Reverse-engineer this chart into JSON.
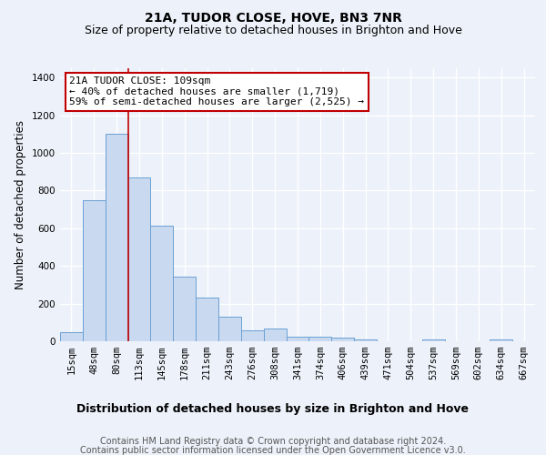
{
  "title": "21A, TUDOR CLOSE, HOVE, BN3 7NR",
  "subtitle": "Size of property relative to detached houses in Brighton and Hove",
  "xlabel": "Distribution of detached houses by size in Brighton and Hove",
  "ylabel": "Number of detached properties",
  "bar_color": "#c9d9f0",
  "bar_edge_color": "#6aa0d4",
  "categories": [
    "15sqm",
    "48sqm",
    "80sqm",
    "113sqm",
    "145sqm",
    "178sqm",
    "211sqm",
    "243sqm",
    "276sqm",
    "308sqm",
    "341sqm",
    "374sqm",
    "406sqm",
    "439sqm",
    "471sqm",
    "504sqm",
    "537sqm",
    "569sqm",
    "602sqm",
    "634sqm",
    "667sqm"
  ],
  "values": [
    48,
    750,
    1100,
    870,
    615,
    345,
    230,
    130,
    60,
    67,
    25,
    25,
    18,
    12,
    0,
    0,
    10,
    0,
    0,
    10,
    0
  ],
  "ylim": [
    0,
    1450
  ],
  "yticks": [
    0,
    200,
    400,
    600,
    800,
    1000,
    1200,
    1400
  ],
  "vline_x_idx": 3,
  "vline_color": "#c00000",
  "annotation_line1": "21A TUDOR CLOSE: 109sqm",
  "annotation_line2": "← 40% of detached houses are smaller (1,719)",
  "annotation_line3": "59% of semi-detached houses are larger (2,525) →",
  "annotation_box_color": "#ffffff",
  "annotation_box_edge_color": "#c00000",
  "footer1": "Contains HM Land Registry data © Crown copyright and database right 2024.",
  "footer2": "Contains public sector information licensed under the Open Government Licence v3.0.",
  "bg_color": "#edf2fa",
  "grid_color": "#ffffff",
  "title_fontsize": 10,
  "subtitle_fontsize": 9,
  "xlabel_fontsize": 9,
  "ylabel_fontsize": 8.5,
  "tick_fontsize": 7.5,
  "annotation_fontsize": 8,
  "footer_fontsize": 7
}
